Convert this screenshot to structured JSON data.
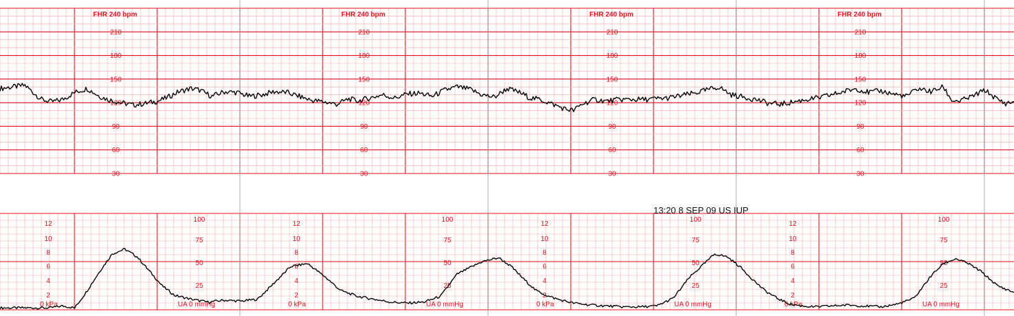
{
  "colors": {
    "grid_minor": "#f4a3a8",
    "grid_major": "#e0101c",
    "labels": "#e8101c",
    "trace": "#000000",
    "page_divider": "#9a9a9a",
    "background": "#ffffff"
  },
  "annotation": "13:20 8 SEP 09 US IUP",
  "chart_data": [
    {
      "type": "line",
      "panel": "fetal-heart-rate",
      "header_label": "FHR 240 bpm",
      "tick_labels": [
        "210",
        "180",
        "150",
        "120",
        "90",
        "60",
        "30"
      ],
      "y_ticks": [
        210,
        180,
        150,
        120,
        90,
        60,
        30
      ],
      "ylim": [
        30,
        240
      ],
      "x_units": "minutes",
      "xlim": [
        0,
        12.2
      ],
      "grid": true,
      "series": [
        {
          "x": [
            0,
            0.15,
            0.3,
            0.4,
            0.5,
            0.62,
            0.75,
            0.9,
            1.05,
            1.2,
            1.3,
            1.45,
            1.6,
            1.75,
            1.9,
            2.0,
            2.15,
            2.3,
            2.4,
            2.55,
            2.7,
            2.85,
            3.0,
            3.15,
            3.3,
            3.45,
            3.6,
            3.75,
            3.9,
            4.05,
            4.2,
            4.3,
            4.45,
            4.6,
            4.75,
            4.9,
            5.05,
            5.2,
            5.35,
            5.5,
            5.65,
            5.8,
            5.95,
            6.1,
            6.25,
            6.38,
            6.5,
            6.6,
            6.7,
            6.8,
            6.9,
            7.0,
            7.15,
            7.3,
            7.45,
            7.6,
            7.75,
            7.9,
            8.05,
            8.2,
            8.35,
            8.5,
            8.65,
            8.8,
            8.95,
            9.1,
            9.25,
            9.4,
            9.55,
            9.7,
            9.85,
            10.0,
            10.15,
            10.3,
            10.45,
            10.6,
            10.75,
            10.9,
            11.05,
            11.2,
            11.35,
            11.45,
            11.55,
            11.7,
            11.85,
            12.0,
            12.1,
            12.2
          ],
          "y": [
            138,
            140,
            142,
            133,
            124,
            121,
            124,
            133,
            138,
            128,
            124,
            120,
            117,
            119,
            122,
            126,
            134,
            138,
            136,
            128,
            134,
            133,
            128,
            130,
            134,
            133,
            128,
            123,
            121,
            118,
            125,
            122,
            126,
            130,
            126,
            131,
            132,
            128,
            136,
            140,
            137,
            130,
            127,
            138,
            133,
            126,
            124,
            120,
            116,
            112,
            110,
            118,
            124,
            122,
            124,
            124,
            124,
            125,
            126,
            129,
            132,
            136,
            140,
            130,
            127,
            124,
            119,
            118,
            121,
            124,
            126,
            130,
            134,
            138,
            133,
            135,
            131,
            128,
            138,
            134,
            140,
            123,
            122,
            128,
            136,
            124,
            119,
            121
          ]
        }
      ]
    },
    {
      "type": "line",
      "panel": "uterine-activity",
      "labels_mmhg": [
        "100",
        "75",
        "50",
        "25"
      ],
      "labels_kpa": [
        "12",
        "10",
        "8",
        "6",
        "4",
        "2"
      ],
      "baseline_kpa_label": "0 kPa",
      "baseline_mmhg_label": "UA 0 mmHg",
      "ylim": [
        0,
        100
      ],
      "x_units": "minutes",
      "xlim": [
        0,
        12.2
      ],
      "grid": true,
      "series": [
        {
          "x": [
            0,
            0.3,
            0.6,
            0.75,
            0.9,
            1.05,
            1.2,
            1.35,
            1.5,
            1.65,
            1.8,
            1.95,
            2.1,
            2.3,
            2.5,
            2.7,
            2.9,
            3.1,
            3.3,
            3.5,
            3.7,
            3.9,
            4.1,
            4.3,
            4.5,
            4.7,
            4.9,
            5.1,
            5.3,
            5.5,
            5.8,
            6.0,
            6.15,
            6.3,
            6.45,
            6.6,
            6.75,
            6.9,
            7.1,
            7.3,
            7.5,
            7.7,
            7.9,
            8.1,
            8.3,
            8.5,
            8.6,
            8.75,
            8.9,
            9.05,
            9.2,
            9.35,
            9.5,
            9.65,
            9.8,
            10.0,
            10.2,
            10.4,
            10.6,
            10.8,
            11.0,
            11.2,
            11.35,
            11.5,
            11.65,
            11.8,
            12.0,
            12.2
          ],
          "y": [
            2,
            2,
            2,
            4,
            2,
            20,
            40,
            58,
            63,
            55,
            40,
            25,
            15,
            11,
            8,
            10,
            9,
            11,
            28,
            45,
            48,
            35,
            20,
            14,
            11,
            8,
            7,
            8,
            14,
            37,
            50,
            54,
            45,
            32,
            20,
            14,
            10,
            7,
            5,
            4,
            3,
            3,
            4,
            12,
            34,
            50,
            58,
            55,
            45,
            32,
            20,
            12,
            6,
            4,
            3,
            4,
            5,
            4,
            3,
            6,
            12,
            35,
            48,
            53,
            48,
            40,
            25,
            18
          ]
        }
      ]
    }
  ]
}
